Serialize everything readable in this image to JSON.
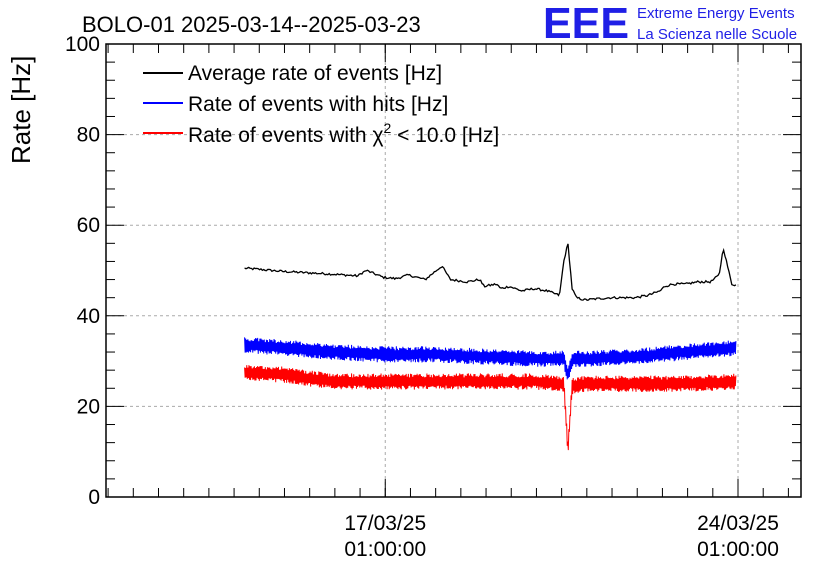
{
  "header": {
    "title": "BOLO-01 2025-03-14--2025-03-23",
    "logo_letters": "EEE",
    "logo_line1": "Extreme Energy Events",
    "logo_line2": "La Scienza nelle Scuole",
    "logo_color": "#1f1fe6"
  },
  "chart_data": {
    "type": "line",
    "title": "BOLO-01 2025-03-14--2025-03-23",
    "xlabel": "",
    "ylabel": "Rate [Hz]",
    "ylim": [
      0,
      100
    ],
    "xlim": [
      "2025-03-11 12:00",
      "2025-03-25 07:00"
    ],
    "grid": true,
    "legend_position": "top-left",
    "y_ticks": [
      "0",
      "20",
      "40",
      "60",
      "80",
      "100"
    ],
    "x_ticks": [
      {
        "date": "17/03/25",
        "time": "01:00:00",
        "at": "2025-03-17 01:00"
      },
      {
        "date": "24/03/25",
        "time": "01:00:00",
        "at": "2025-03-24 01:00"
      }
    ],
    "series": [
      {
        "name": "Average rate of events [Hz]",
        "color": "#000000",
        "x": [
          "2025-03-14 06:00",
          "2025-03-14 12:00",
          "2025-03-15 00:00",
          "2025-03-15 12:00",
          "2025-03-16 00:00",
          "2025-03-16 12:00",
          "2025-03-16 14:00",
          "2025-03-16 16:00",
          "2025-03-17 00:00",
          "2025-03-17 06:00",
          "2025-03-17 12:00",
          "2025-03-17 20:00",
          "2025-03-18 00:00",
          "2025-03-18 04:00",
          "2025-03-18 08:00",
          "2025-03-18 16:00",
          "2025-03-18 22:00",
          "2025-03-19 00:00",
          "2025-03-19 06:00",
          "2025-03-19 08:00",
          "2025-03-19 12:00",
          "2025-03-19 18:00",
          "2025-03-20 00:00",
          "2025-03-20 06:00",
          "2025-03-20 12:00",
          "2025-03-20 14:00",
          "2025-03-20 16:00",
          "2025-03-20 18:00",
          "2025-03-20 20:00",
          "2025-03-21 00:00",
          "2025-03-21 12:00",
          "2025-03-22 00:00",
          "2025-03-22 06:00",
          "2025-03-22 12:00",
          "2025-03-22 14:00",
          "2025-03-22 18:00",
          "2025-03-23 00:00",
          "2025-03-23 06:00",
          "2025-03-23 12:00",
          "2025-03-23 16:00",
          "2025-03-23 18:00",
          "2025-03-23 22:00",
          "2025-03-24 00:00"
        ],
        "y": [
          50.5,
          50.3,
          49.8,
          49.5,
          49.2,
          48.8,
          49.5,
          50.0,
          48.5,
          48.2,
          49.0,
          48.0,
          49.5,
          51.0,
          48.0,
          47.5,
          48.0,
          46.5,
          47.0,
          46.0,
          46.5,
          45.5,
          46.0,
          45.5,
          44.5,
          52.0,
          56.0,
          46.0,
          44.0,
          43.5,
          44.0,
          44.0,
          44.5,
          45.5,
          46.5,
          47.0,
          47.0,
          47.5,
          47.5,
          49.0,
          55.0,
          47.0,
          46.8
        ]
      },
      {
        "name": "Rate of events with hits [Hz]",
        "color": "#0000ff",
        "x": [
          "2025-03-14 06:00",
          "2025-03-15 00:00",
          "2025-03-16 00:00",
          "2025-03-17 00:00",
          "2025-03-18 00:00",
          "2025-03-19 00:00",
          "2025-03-20 00:00",
          "2025-03-20 14:00",
          "2025-03-20 16:00",
          "2025-03-20 18:00",
          "2025-03-21 00:00",
          "2025-03-22 00:00",
          "2025-03-23 00:00",
          "2025-03-24 00:00"
        ],
        "y": [
          33.5,
          33.0,
          32.0,
          31.5,
          31.5,
          31.0,
          30.5,
          30.5,
          27.0,
          30.5,
          30.5,
          31.0,
          32.0,
          33.0
        ],
        "band": 1.8
      },
      {
        "name": "Rate of events with χ2 < 10.0 [Hz]",
        "color": "#ff0000",
        "x": [
          "2025-03-14 06:00",
          "2025-03-15 00:00",
          "2025-03-16 00:00",
          "2025-03-17 00:00",
          "2025-03-18 00:00",
          "2025-03-19 00:00",
          "2025-03-20 00:00",
          "2025-03-20 14:00",
          "2025-03-20 16:00",
          "2025-03-20 18:00",
          "2025-03-21 00:00",
          "2025-03-22 00:00",
          "2025-03-23 00:00",
          "2025-03-24 00:00"
        ],
        "y": [
          27.5,
          27.0,
          25.5,
          25.5,
          25.5,
          25.5,
          25.5,
          25.0,
          10.5,
          24.5,
          25.0,
          25.0,
          25.0,
          25.5
        ],
        "band": 1.8
      }
    ],
    "legend": {
      "entries": [
        {
          "text": "Average rate of events [Hz]",
          "color": "#000000"
        },
        {
          "text": "Rate of events with hits [Hz]",
          "color": "#0000ff"
        },
        {
          "prefix": "Rate of events with ",
          "chi": "χ",
          "sup": "2",
          "suffix": " < 10.0 [Hz]",
          "color": "#ff0000"
        }
      ]
    }
  }
}
